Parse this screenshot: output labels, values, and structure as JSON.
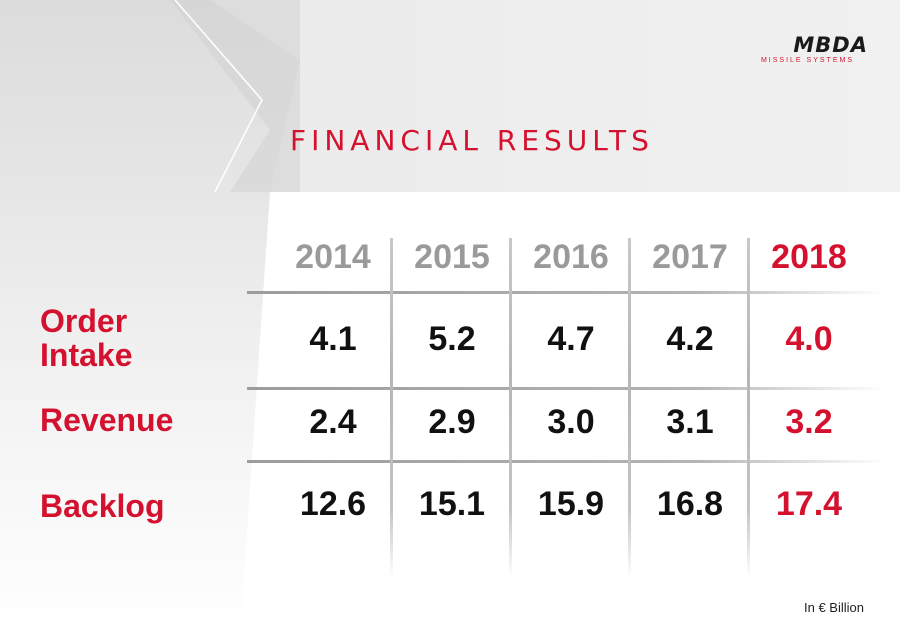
{
  "brand": {
    "name": "MBDA",
    "tagline": "MISSILE SYSTEMS"
  },
  "title": "FINANCIAL RESULTS",
  "years": [
    "2014",
    "2015",
    "2016",
    "2017",
    "2018"
  ],
  "highlight_year_index": 4,
  "rows": [
    {
      "label_lines": [
        "Order",
        "Intake"
      ],
      "values": [
        "4.1",
        "5.2",
        "4.7",
        "4.2",
        "4.0"
      ]
    },
    {
      "label_lines": [
        "Revenue"
      ],
      "values": [
        "2.4",
        "2.9",
        "3.0",
        "3.1",
        "3.2"
      ]
    },
    {
      "label_lines": [
        "Backlog"
      ],
      "values": [
        "12.6",
        "15.1",
        "15.9",
        "16.8",
        "17.4"
      ]
    }
  ],
  "unit_note": "In € Billion",
  "colors": {
    "accent": "#d4112e",
    "year_gray": "#9a9a9a",
    "value_text": "#111111"
  }
}
